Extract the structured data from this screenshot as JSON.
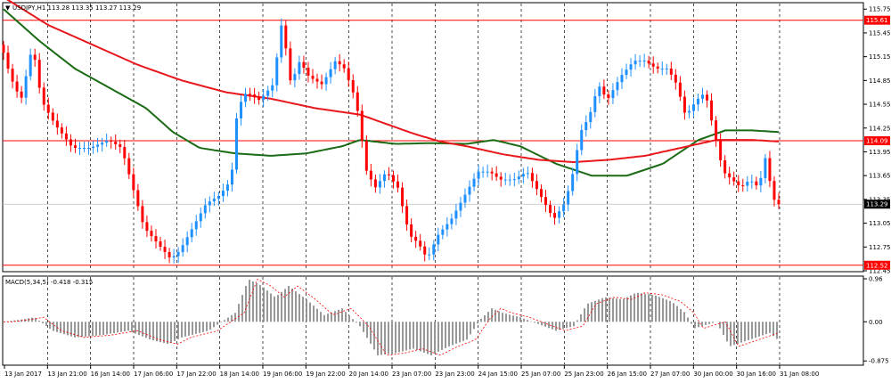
{
  "symbol_header": "USDJPY,H1  113.28 113.35 113.27 113.29",
  "macd_header": "MACD(5,34,5) -0.418 -0.315",
  "colors": {
    "bull": "#1e90ff",
    "bear": "#ff0000",
    "ma_fast": "#e8181c",
    "ma_slow": "#1a6b14",
    "macd_bars": "#8c8c8c",
    "macd_signal": "#ff0000",
    "hline": "#ff0000",
    "price_label_bg": "#ff0000",
    "current_label_bg": "#000000"
  },
  "chart_data": {
    "type": "candlestick",
    "price_axis": {
      "ticks": [
        "115.75",
        "115.45",
        "115.15",
        "114.85",
        "114.55",
        "114.25",
        "113.95",
        "113.65",
        "113.35",
        "113.05",
        "112.75",
        "112.45"
      ],
      "range": [
        112.45,
        115.82
      ]
    },
    "price_labels": [
      {
        "value": 115.61,
        "text": "115.61",
        "style": "red"
      },
      {
        "value": 114.09,
        "text": "114.09",
        "style": "red"
      },
      {
        "value": 113.29,
        "text": "113.29",
        "style": "black"
      },
      {
        "value": 112.52,
        "text": "112.52",
        "style": "red"
      }
    ],
    "horizontal_lines": [
      115.61,
      114.09,
      112.52
    ],
    "current_price": 113.29,
    "time_labels": [
      "13 Jan 2017",
      "13 Jan 21:00",
      "16 Jan 14:00",
      "17 Jan 06:00",
      "17 Jan 22:00",
      "18 Jan 14:00",
      "19 Jan 06:00",
      "19 Jan 22:00",
      "20 Jan 14:00",
      "23 Jan 07:00",
      "23 Jan 23:00",
      "24 Jan 15:00",
      "25 Jan 07:00",
      "25 Jan 23:00",
      "26 Jan 15:00",
      "27 Jan 07:00",
      "30 Jan 00:00",
      "30 Jan 16:00",
      "31 Jan 08:00"
    ],
    "price_path": [
      [
        0,
        115.3
      ],
      [
        10,
        114.9
      ],
      [
        22,
        114.6
      ],
      [
        35,
        115.3
      ],
      [
        45,
        114.6
      ],
      [
        60,
        114.3
      ],
      [
        80,
        114.0
      ],
      [
        100,
        114.0
      ],
      [
        120,
        114.1
      ],
      [
        135,
        114.0
      ],
      [
        150,
        113.4
      ],
      [
        160,
        113.0
      ],
      [
        175,
        112.8
      ],
      [
        190,
        112.6
      ],
      [
        200,
        112.7
      ],
      [
        215,
        113.0
      ],
      [
        230,
        113.3
      ],
      [
        245,
        113.4
      ],
      [
        258,
        113.6
      ],
      [
        265,
        114.5
      ],
      [
        275,
        114.7
      ],
      [
        290,
        114.6
      ],
      [
        305,
        114.8
      ],
      [
        315,
        115.6
      ],
      [
        325,
        114.8
      ],
      [
        335,
        115.1
      ],
      [
        345,
        114.9
      ],
      [
        360,
        114.8
      ],
      [
        375,
        115.1
      ],
      [
        385,
        115.0
      ],
      [
        398,
        114.6
      ],
      [
        410,
        113.7
      ],
      [
        420,
        113.5
      ],
      [
        432,
        113.7
      ],
      [
        445,
        113.5
      ],
      [
        458,
        112.9
      ],
      [
        468,
        112.8
      ],
      [
        478,
        112.6
      ],
      [
        490,
        112.9
      ],
      [
        505,
        113.1
      ],
      [
        520,
        113.4
      ],
      [
        535,
        113.7
      ],
      [
        548,
        113.7
      ],
      [
        560,
        113.6
      ],
      [
        575,
        113.6
      ],
      [
        590,
        113.7
      ],
      [
        605,
        113.4
      ],
      [
        620,
        113.1
      ],
      [
        632,
        113.3
      ],
      [
        640,
        113.6
      ],
      [
        650,
        114.2
      ],
      [
        660,
        114.4
      ],
      [
        670,
        114.8
      ],
      [
        680,
        114.6
      ],
      [
        695,
        114.9
      ],
      [
        710,
        115.1
      ],
      [
        722,
        115.1
      ],
      [
        735,
        115.0
      ],
      [
        748,
        115.0
      ],
      [
        758,
        114.8
      ],
      [
        768,
        114.4
      ],
      [
        780,
        114.6
      ],
      [
        790,
        114.7
      ],
      [
        800,
        114.2
      ],
      [
        810,
        113.7
      ],
      [
        820,
        113.6
      ],
      [
        830,
        113.5
      ],
      [
        840,
        113.6
      ],
      [
        850,
        113.5
      ],
      [
        858,
        113.9
      ],
      [
        865,
        113.4
      ],
      [
        870,
        113.29
      ]
    ],
    "ma_fast_path": [
      [
        0,
        115.9
      ],
      [
        50,
        115.55
      ],
      [
        100,
        115.3
      ],
      [
        150,
        115.05
      ],
      [
        200,
        114.85
      ],
      [
        250,
        114.7
      ],
      [
        300,
        114.62
      ],
      [
        350,
        114.5
      ],
      [
        400,
        114.42
      ],
      [
        430,
        114.3
      ],
      [
        460,
        114.18
      ],
      [
        490,
        114.08
      ],
      [
        520,
        114.02
      ],
      [
        560,
        113.92
      ],
      [
        600,
        113.85
      ],
      [
        640,
        113.82
      ],
      [
        680,
        113.85
      ],
      [
        720,
        113.9
      ],
      [
        760,
        114.0
      ],
      [
        800,
        114.1
      ],
      [
        840,
        114.1
      ],
      [
        870,
        114.08
      ]
    ],
    "ma_slow_path": [
      [
        0,
        115.75
      ],
      [
        40,
        115.35
      ],
      [
        80,
        115.0
      ],
      [
        120,
        114.75
      ],
      [
        160,
        114.5
      ],
      [
        190,
        114.2
      ],
      [
        220,
        114.0
      ],
      [
        260,
        113.93
      ],
      [
        300,
        113.9
      ],
      [
        340,
        113.93
      ],
      [
        380,
        114.02
      ],
      [
        400,
        114.1
      ],
      [
        440,
        114.05
      ],
      [
        480,
        114.06
      ],
      [
        520,
        114.05
      ],
      [
        550,
        114.1
      ],
      [
        580,
        114.02
      ],
      [
        620,
        113.8
      ],
      [
        660,
        113.65
      ],
      [
        700,
        113.65
      ],
      [
        740,
        113.8
      ],
      [
        780,
        114.1
      ],
      [
        810,
        114.22
      ],
      [
        840,
        114.22
      ],
      [
        870,
        114.2
      ]
    ],
    "macd_axis": {
      "ticks": [
        "0.96",
        "0.00",
        "-0.875"
      ],
      "range": [
        -0.95,
        1.0
      ]
    },
    "macd_path": [
      [
        0,
        0.0
      ],
      [
        20,
        0.05
      ],
      [
        35,
        0.1
      ],
      [
        55,
        -0.2
      ],
      [
        80,
        -0.35
      ],
      [
        110,
        -0.3
      ],
      [
        140,
        -0.2
      ],
      [
        165,
        -0.4
      ],
      [
        185,
        -0.5
      ],
      [
        200,
        -0.35
      ],
      [
        230,
        -0.2
      ],
      [
        260,
        0.2
      ],
      [
        275,
        0.95
      ],
      [
        290,
        0.8
      ],
      [
        305,
        0.55
      ],
      [
        320,
        0.8
      ],
      [
        340,
        0.5
      ],
      [
        360,
        0.15
      ],
      [
        380,
        0.3
      ],
      [
        400,
        -0.1
      ],
      [
        420,
        -0.75
      ],
      [
        440,
        -0.7
      ],
      [
        460,
        -0.6
      ],
      [
        480,
        -0.75
      ],
      [
        500,
        -0.55
      ],
      [
        520,
        -0.4
      ],
      [
        535,
        0.05
      ],
      [
        548,
        0.3
      ],
      [
        560,
        0.2
      ],
      [
        580,
        0.1
      ],
      [
        600,
        -0.05
      ],
      [
        620,
        -0.2
      ],
      [
        640,
        -0.1
      ],
      [
        655,
        0.4
      ],
      [
        675,
        0.55
      ],
      [
        695,
        0.5
      ],
      [
        710,
        0.65
      ],
      [
        730,
        0.6
      ],
      [
        750,
        0.45
      ],
      [
        765,
        0.2
      ],
      [
        775,
        -0.15
      ],
      [
        800,
        0.0
      ],
      [
        815,
        -0.55
      ],
      [
        830,
        -0.45
      ],
      [
        845,
        -0.35
      ],
      [
        860,
        -0.25
      ],
      [
        870,
        -0.418
      ]
    ]
  }
}
